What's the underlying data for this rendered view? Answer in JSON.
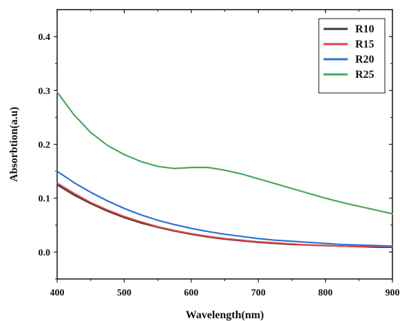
{
  "chart_data": {
    "type": "line",
    "xlabel": "Wavelength(nm)",
    "ylabel": "Absorbtion(a.u)",
    "xlim": [
      400,
      900
    ],
    "ylim": [
      -0.05,
      0.45
    ],
    "xticks": [
      400,
      500,
      600,
      700,
      800,
      900
    ],
    "yticks": [
      0.0,
      0.1,
      0.2,
      0.3,
      0.4
    ],
    "ytick_labels": [
      "0.0",
      "0.1",
      "0.2",
      "0.3",
      "0.4"
    ],
    "grid": false,
    "legend_position": "top-right",
    "series": [
      {
        "name": "R10",
        "color": "#3a3a3a",
        "x": [
          400,
          425,
          450,
          475,
          500,
          525,
          550,
          575,
          600,
          625,
          650,
          675,
          700,
          725,
          750,
          775,
          800,
          825,
          850,
          875,
          900
        ],
        "y": [
          0.125,
          0.106,
          0.09,
          0.076,
          0.064,
          0.054,
          0.046,
          0.039,
          0.033,
          0.028,
          0.024,
          0.021,
          0.018,
          0.016,
          0.014,
          0.013,
          0.012,
          0.011,
          0.01,
          0.009,
          0.009
        ]
      },
      {
        "name": "R15",
        "color": "#e0423f",
        "x": [
          400,
          425,
          450,
          475,
          500,
          525,
          550,
          575,
          600,
          625,
          650,
          675,
          700,
          725,
          750,
          775,
          800,
          825,
          850,
          875,
          900
        ],
        "y": [
          0.128,
          0.109,
          0.092,
          0.078,
          0.066,
          0.056,
          0.047,
          0.04,
          0.034,
          0.029,
          0.025,
          0.022,
          0.019,
          0.017,
          0.015,
          0.013,
          0.012,
          0.011,
          0.01,
          0.01,
          0.01
        ]
      },
      {
        "name": "R20",
        "color": "#2f6fd6",
        "x": [
          400,
          425,
          450,
          475,
          500,
          525,
          550,
          575,
          600,
          625,
          650,
          675,
          700,
          725,
          750,
          775,
          800,
          825,
          850,
          875,
          900
        ],
        "y": [
          0.15,
          0.129,
          0.111,
          0.095,
          0.081,
          0.069,
          0.059,
          0.051,
          0.044,
          0.038,
          0.033,
          0.029,
          0.025,
          0.022,
          0.02,
          0.018,
          0.016,
          0.014,
          0.013,
          0.012,
          0.011
        ]
      },
      {
        "name": "R25",
        "color": "#4aa65a",
        "x": [
          400,
          425,
          450,
          475,
          500,
          525,
          550,
          575,
          600,
          625,
          650,
          675,
          700,
          725,
          750,
          775,
          800,
          825,
          850,
          875,
          900
        ],
        "y": [
          0.297,
          0.255,
          0.222,
          0.198,
          0.181,
          0.168,
          0.159,
          0.155,
          0.157,
          0.157,
          0.152,
          0.145,
          0.136,
          0.127,
          0.118,
          0.109,
          0.1,
          0.092,
          0.085,
          0.078,
          0.071
        ]
      }
    ]
  }
}
